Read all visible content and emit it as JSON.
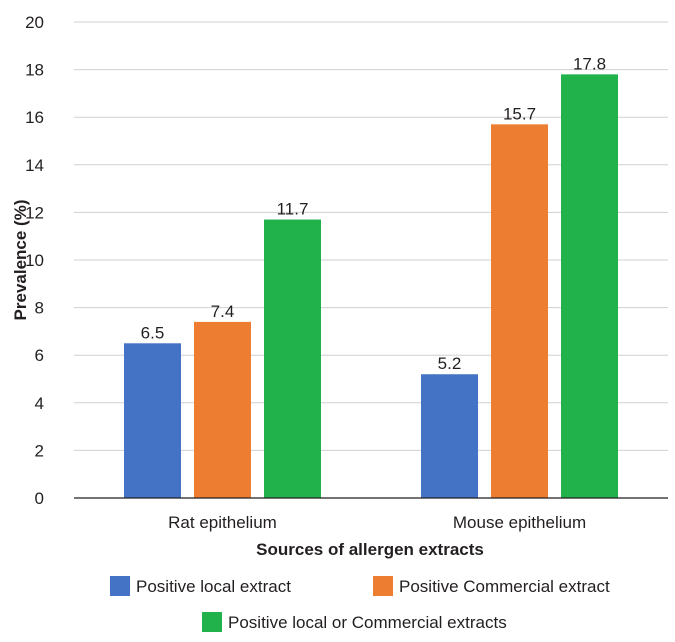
{
  "chart_data": {
    "type": "bar",
    "categories": [
      "Rat epithelium",
      "Mouse epithelium"
    ],
    "series": [
      {
        "name": "Positive local extract",
        "color": "#4472c4",
        "values": [
          6.5,
          5.2
        ]
      },
      {
        "name": "Positive Commercial extract",
        "color": "#ed7d31",
        "values": [
          7.4,
          15.7
        ]
      },
      {
        "name": "Positive local or Commercial extracts",
        "color": "#21b24b",
        "values": [
          11.7,
          17.8
        ]
      }
    ],
    "xlabel": "Sources of allergen extracts",
    "ylabel": "Prevalence (%)",
    "ylim": [
      0,
      20
    ],
    "yticks": [
      0,
      2,
      4,
      6,
      8,
      10,
      12,
      14,
      16,
      18,
      20
    ],
    "grid": true,
    "legend_position": "bottom"
  }
}
